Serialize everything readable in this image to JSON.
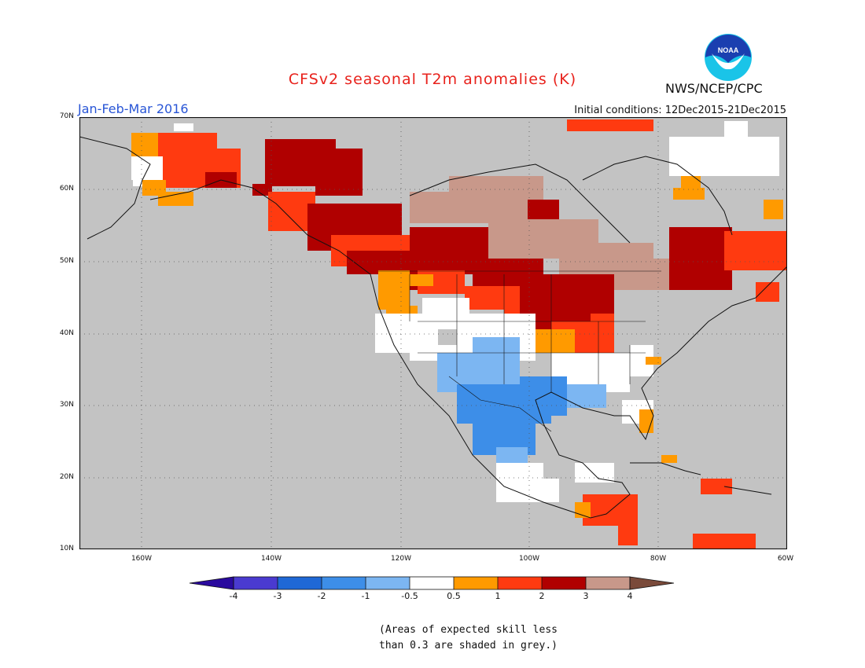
{
  "title": "CFSv2 seasonal T2m anomalies (K)",
  "period": "Jan-Feb-Mar 2016",
  "initial_conditions": "Initial conditions: 12Dec2015-21Dec2015",
  "agency": "NWS/NCEP/CPC",
  "logo_text": "NOAA",
  "lat_labels": [
    "70N",
    "60N",
    "50N",
    "40N",
    "30N",
    "20N",
    "10N"
  ],
  "lon_labels": [
    "160W",
    "140W",
    "120W",
    "100W",
    "80W",
    "60W"
  ],
  "colorbar": {
    "labels": [
      "-4",
      "-3",
      "-2",
      "-1",
      "-0.5",
      "0.5",
      "1",
      "2",
      "3",
      "4"
    ],
    "colors": [
      "#2a0a9e",
      "#4a3ad0",
      "#1f68d6",
      "#3d8ee8",
      "#7cb6f2",
      "#ffffff",
      "#ff9a00",
      "#ff3a10",
      "#b00000",
      "#c8988a",
      "#7a4a3a"
    ]
  },
  "skill_note_line1": "(Areas of expected skill less",
  "skill_note_line2": "than 0.3 are shaded in grey.)",
  "grey_color": "#c3c3c3",
  "units": "K"
}
